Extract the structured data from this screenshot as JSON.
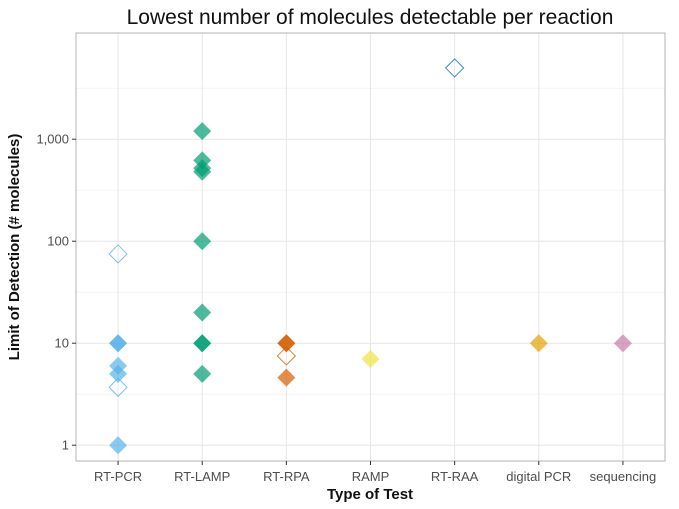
{
  "chart_data": {
    "type": "scatter",
    "title": "Lowest number of molecules detectable per reaction",
    "xlabel": "Type of Test",
    "ylabel": "Limit of Detection (# molecules)",
    "y_scale": "log10",
    "ylim": [
      0.7,
      11000
    ],
    "y_ticks": [
      1,
      10,
      100,
      1000
    ],
    "y_tick_labels": [
      "1",
      "10",
      "100",
      "1,000"
    ],
    "categories": [
      "RT-PCR",
      "RT-LAMP",
      "RT-RPA",
      "RAMP",
      "RT-RAA",
      "digital PCR",
      "sequencing"
    ],
    "grid": true,
    "legend": "none",
    "marker": "diamond",
    "series": [
      {
        "category": "RT-PCR",
        "color": "#56B4E9",
        "points": [
          {
            "y": 1,
            "filled": true
          },
          {
            "y": 3.7,
            "filled": false
          },
          {
            "y": 5,
            "filled": true
          },
          {
            "y": 6,
            "filled": true
          },
          {
            "y": 10,
            "filled": true
          },
          {
            "y": 10,
            "filled": true
          },
          {
            "y": 75,
            "filled": false
          }
        ]
      },
      {
        "category": "RT-LAMP",
        "color": "#009E73",
        "points": [
          {
            "y": 5,
            "filled": true
          },
          {
            "y": 10,
            "filled": true
          },
          {
            "y": 10,
            "filled": true
          },
          {
            "y": 20,
            "filled": true
          },
          {
            "y": 100,
            "filled": true
          },
          {
            "y": 480,
            "filled": true
          },
          {
            "y": 520,
            "filled": true
          },
          {
            "y": 620,
            "filled": true
          },
          {
            "y": 1200,
            "filled": true
          }
        ]
      },
      {
        "category": "RT-RPA",
        "color": "#D55E00",
        "points": [
          {
            "y": 4.6,
            "filled": true
          },
          {
            "y": 7.5,
            "filled": false
          },
          {
            "y": 10,
            "filled": true
          },
          {
            "y": 10,
            "filled": true
          }
        ]
      },
      {
        "category": "RAMP",
        "color": "#F0E442",
        "points": [
          {
            "y": 7,
            "filled": true
          }
        ]
      },
      {
        "category": "RT-RAA",
        "color": "#0072B2",
        "points": [
          {
            "y": 5000,
            "filled": false
          }
        ]
      },
      {
        "category": "digital PCR",
        "color": "#E69F00",
        "points": [
          {
            "y": 10,
            "filled": true
          }
        ]
      },
      {
        "category": "sequencing",
        "color": "#CC79A7",
        "points": [
          {
            "y": 10,
            "filled": true
          }
        ]
      }
    ]
  }
}
